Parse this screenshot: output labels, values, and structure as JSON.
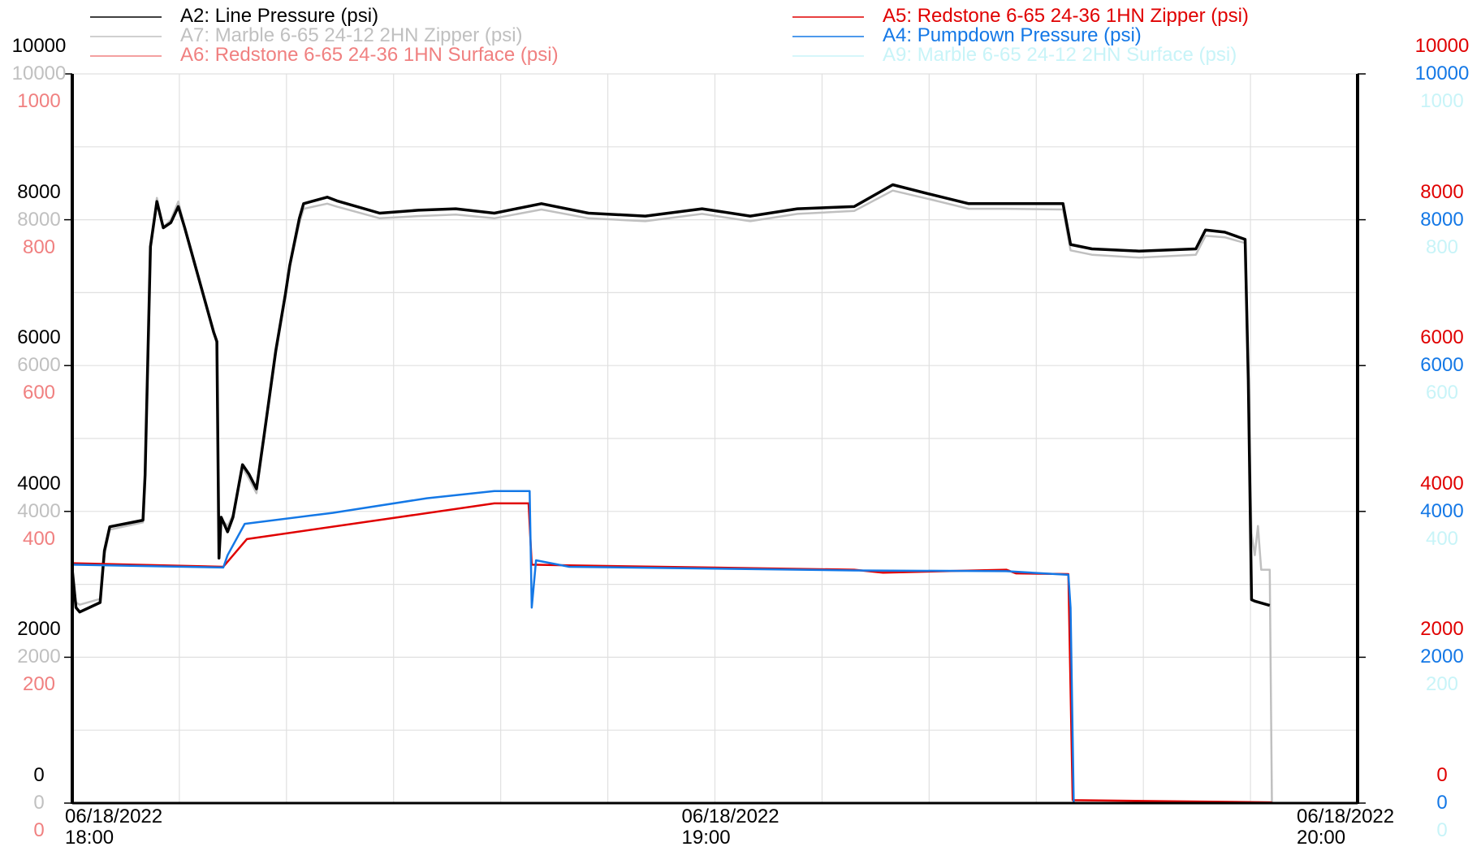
{
  "chart_data": {
    "type": "line",
    "legend": "top",
    "grid": true,
    "xlim": [
      0,
      120
    ],
    "xticks": [
      {
        "value": 0,
        "label": "06/18/2022\n18:00"
      },
      {
        "value": 60,
        "label": "06/18/2022\n19:00"
      },
      {
        "value": 120,
        "label": "06/18/2022\n20:00"
      }
    ],
    "minor_xticks": [
      10,
      20,
      30,
      40,
      50,
      70,
      80,
      90,
      100,
      110
    ],
    "y_axes": [
      {
        "side": "left",
        "color": "#000000",
        "ylim": [
          0,
          10000
        ],
        "yticks": [
          0,
          2000,
          4000,
          6000,
          8000,
          10000
        ]
      },
      {
        "side": "left",
        "color": "#c0c0c0",
        "ylim": [
          0,
          10000
        ],
        "yticks": [
          0,
          2000,
          4000,
          6000,
          8000,
          10000
        ],
        "minor_yticks": [
          1000,
          3000,
          5000,
          7000,
          9000
        ]
      },
      {
        "side": "left",
        "color": "#f08080",
        "ylim": [
          0,
          1000
        ],
        "yticks": [
          0,
          200,
          400,
          600,
          800,
          1000
        ]
      },
      {
        "side": "right",
        "color": "#e00000",
        "ylim": [
          0,
          10000
        ],
        "yticks": [
          0,
          2000,
          4000,
          6000,
          8000,
          10000
        ]
      },
      {
        "side": "right",
        "color": "#1478e6",
        "ylim": [
          0,
          10000
        ],
        "yticks": [
          0,
          2000,
          4000,
          6000,
          8000,
          10000
        ]
      },
      {
        "side": "right",
        "color": "#c8f4f8",
        "ylim": [
          0,
          1000
        ],
        "yticks": [
          0,
          200,
          400,
          600,
          800,
          1000
        ]
      }
    ],
    "series": [
      {
        "name": "A2: Line Pressure (psi)",
        "color": "#000000",
        "axis": 0,
        "x": [
          0,
          0.35,
          0.7,
          2.6,
          3.0,
          3.5,
          6.6,
          6.8,
          7.3,
          7.9,
          8.5,
          9.2,
          9.9,
          10.5,
          13.2,
          13.5,
          13.7,
          13.9,
          14.5,
          15.0,
          15.9,
          16.5,
          17.2,
          17.9,
          19.0,
          19.9,
          20.3,
          21.2,
          21.6,
          23.8,
          24.7,
          28.7,
          32.3,
          35.8,
          39.4,
          43.8,
          48.2,
          53.5,
          58.8,
          63.3,
          67.7,
          73.0,
          76.6,
          80.1,
          83.7,
          87.2,
          92.5,
          93.2,
          95.2,
          99.6,
          104.9,
          105.8,
          107.6,
          109.5,
          109.8,
          110.1,
          110.4,
          111.8
        ],
        "values": [
          3200,
          2680,
          2620,
          2750,
          3460,
          3790,
          3880,
          4500,
          7630,
          8250,
          7890,
          7960,
          8180,
          7890,
          6460,
          6330,
          3360,
          3920,
          3720,
          3920,
          4640,
          4510,
          4310,
          5030,
          6200,
          6980,
          7370,
          8020,
          8220,
          8310,
          8260,
          8090,
          8130,
          8150,
          8090,
          8220,
          8090,
          8050,
          8150,
          8050,
          8150,
          8180,
          8480,
          8350,
          8220,
          8220,
          8220,
          7660,
          7600,
          7570,
          7600,
          7860,
          7830,
          7730,
          5810,
          2790,
          2770,
          2710
        ]
      },
      {
        "name": "A7: Marble 6-65 24-12 2HN Zipper (psi)",
        "color": "#c0c0c0",
        "axis": 1,
        "x": [
          0,
          0.35,
          0.7,
          2.6,
          3.0,
          3.5,
          6.6,
          6.8,
          7.3,
          7.9,
          8.5,
          9.2,
          9.9,
          10.5,
          13.2,
          13.5,
          13.7,
          13.9,
          14.5,
          15.0,
          15.9,
          16.5,
          17.2,
          17.9,
          19.0,
          19.9,
          20.3,
          21.2,
          21.6,
          23.8,
          24.7,
          28.7,
          32.3,
          35.8,
          39.4,
          43.8,
          48.2,
          53.5,
          58.8,
          63.3,
          67.7,
          73.0,
          76.6,
          80.1,
          83.7,
          87.2,
          92.5,
          93.2,
          95.2,
          99.6,
          104.9,
          105.8,
          107.6,
          109.5,
          109.8,
          110.1,
          110.4,
          110.7,
          111.0,
          111.8,
          112.0,
          113.8
        ],
        "values": [
          3150,
          2750,
          2720,
          2800,
          3400,
          3750,
          3850,
          4500,
          7600,
          8300,
          7900,
          8000,
          8250,
          7900,
          6450,
          6300,
          3400,
          3900,
          3800,
          3950,
          4600,
          4450,
          4250,
          5000,
          6150,
          6950,
          7350,
          7950,
          8150,
          8220,
          8180,
          8020,
          8050,
          8070,
          8020,
          8140,
          8020,
          7980,
          8080,
          7980,
          8080,
          8120,
          8400,
          8280,
          8150,
          8150,
          8140,
          7580,
          7520,
          7480,
          7520,
          7780,
          7760,
          7680,
          5800,
          3700,
          3400,
          3800,
          3200,
          3200,
          0,
          0
        ]
      },
      {
        "name": "A6: Redstone 6-65 24-36 1HN Surface (psi)",
        "color": "#f08080",
        "axis": 2,
        "x": [
          0,
          112
        ],
        "values": [
          0,
          0
        ]
      },
      {
        "name": "A5: Redstone 6-65 24-36 1HN Zipper (psi)",
        "color": "#e00000",
        "axis": 3,
        "x": [
          0,
          14.1,
          16.3,
          39.4,
          42.6,
          42.9,
          46.4,
          73.0,
          75.7,
          87.2,
          88.1,
          93.0,
          93.4,
          112.0
        ],
        "values": [
          3290,
          3240,
          3620,
          4110,
          4110,
          3270,
          3260,
          3200,
          3160,
          3200,
          3150,
          3140,
          40,
          10
        ]
      },
      {
        "name": "A4: Pumpdown Pressure (psi)",
        "color": "#1478e6",
        "axis": 4,
        "x": [
          0,
          14.1,
          14.5,
          16.1,
          24.3,
          33.1,
          39.4,
          42.7,
          42.9,
          43.3,
          46.4,
          73.0,
          87.2,
          93.0,
          93.2,
          93.5,
          112.0
        ],
        "values": [
          3270,
          3230,
          3400,
          3830,
          3980,
          4180,
          4280,
          4280,
          2680,
          3330,
          3240,
          3190,
          3180,
          3130,
          2680,
          0,
          0
        ]
      },
      {
        "name": "A9: Marble 6-65 24-12 2HN Surface (psi)",
        "color": "#c8f4f8",
        "axis": 5,
        "x": [
          0,
          120
        ],
        "values": [
          0,
          0
        ]
      }
    ]
  }
}
